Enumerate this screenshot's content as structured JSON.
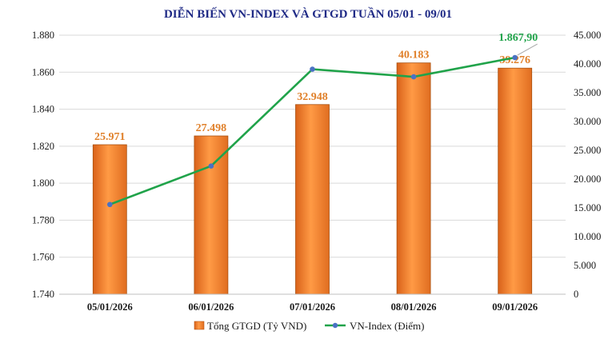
{
  "chart_data": {
    "type": "bar+line",
    "title": "DIỄN BIẾN VN-INDEX VÀ GTGD TUẦN 05/01 - 09/01",
    "categories": [
      "05/01/2026",
      "06/01/2026",
      "07/01/2026",
      "08/01/2026",
      "09/01/2026"
    ],
    "series": [
      {
        "name": "Tổng GTGD (Tỷ VND)",
        "type": "bar",
        "axis": "right",
        "values": [
          25971,
          27498,
          32948,
          40183,
          39276
        ],
        "labels": [
          "25.971",
          "27.498",
          "32.948",
          "40.183",
          "39.276"
        ],
        "color": "#f08a33"
      },
      {
        "name": "VN-Index (Điểm)",
        "type": "line",
        "axis": "left",
        "values": [
          1788.5,
          1809.3,
          1861.6,
          1857.5,
          1867.9
        ],
        "labels": [
          "",
          "",
          "",
          "",
          "1.867,90"
        ],
        "line_color": "#20a34a",
        "marker_color": "#4a72c4"
      }
    ],
    "y_left": {
      "ylim": [
        1740,
        1880
      ],
      "ticks": [
        1740,
        1760,
        1780,
        1800,
        1820,
        1840,
        1860,
        1880
      ],
      "tick_labels": [
        "1.740",
        "1.760",
        "1.780",
        "1.800",
        "1.820",
        "1.840",
        "1.860",
        "1.880"
      ]
    },
    "y_right": {
      "ylim": [
        0,
        45000
      ],
      "ticks": [
        0,
        5000,
        10000,
        15000,
        20000,
        25000,
        30000,
        35000,
        40000,
        45000
      ],
      "tick_labels": [
        "0",
        "5.000",
        "10.000",
        "15.000",
        "20.000",
        "25.000",
        "30.000",
        "35.000",
        "40.000",
        "45.000"
      ]
    },
    "grid": true,
    "legend": "bottom"
  }
}
